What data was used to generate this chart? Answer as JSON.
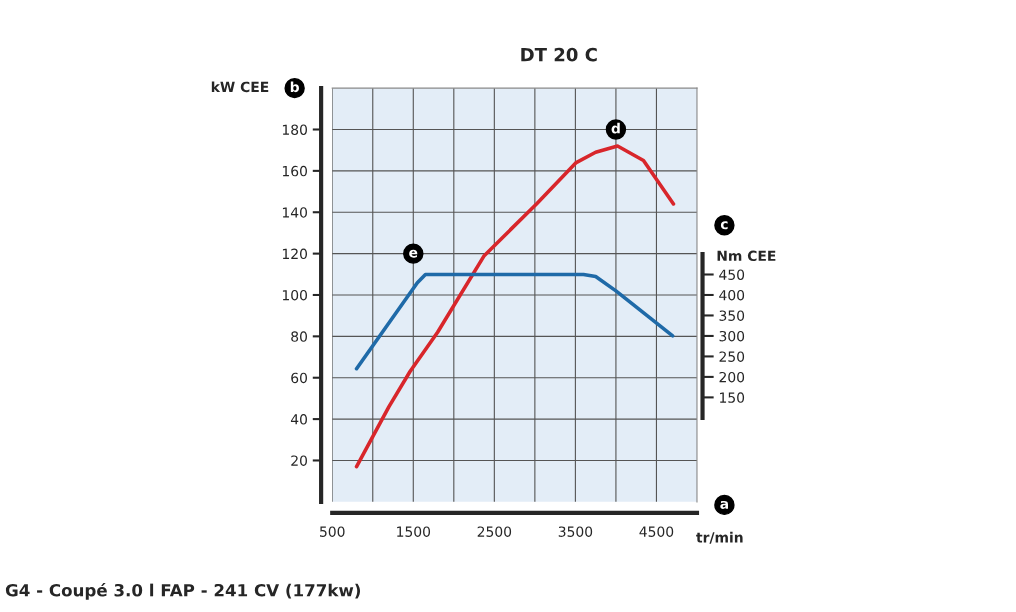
{
  "chart_data": {
    "type": "line",
    "title": "DT 20 C",
    "xlabel": "tr/min",
    "ylabel": "kW CEE",
    "y2label": "Nm CEE",
    "series": [
      {
        "color": "#d8262b",
        "x": [
          800,
          1200,
          1460,
          1800,
          2375,
          3020,
          3510,
          3750,
          4020,
          4340,
          4710
        ],
        "values": [
          17,
          46,
          63,
          82,
          119,
          144,
          164,
          169,
          172,
          165,
          144
        ]
      },
      {
        "color": "#1f6aa8",
        "axis": "y2",
        "x": [
          800,
          1550,
          1650,
          3600,
          3750,
          4000,
          4700
        ],
        "values": [
          220,
          430,
          450,
          450,
          445,
          410,
          300
        ]
      }
    ],
    "xlim": [
      500,
      5000
    ],
    "xticks": [
      500,
      {
        "value": 1000,
        "label": null
      },
      1500,
      {
        "value": 2000,
        "label": null
      },
      2500,
      {
        "value": 3000,
        "label": null
      },
      3500,
      {
        "value": 4000,
        "label": null
      },
      4500
    ],
    "ylim": [
      0,
      200
    ],
    "yticks": [
      20,
      40,
      60,
      80,
      100,
      120,
      140,
      160,
      180
    ],
    "y2lim": [
      -105,
      905
    ],
    "y2ticks": [
      150,
      200,
      250,
      300,
      350,
      400,
      450
    ],
    "grid": true,
    "line_style": "solid",
    "marker": "none",
    "annotations": [
      {
        "text": "d",
        "x": 4000,
        "y": 180
      },
      {
        "text": "e",
        "x": 1500,
        "y": 120
      },
      "a",
      "b",
      "c",
      "G4 - Coupé 3.0 l FAP - 241 CV (177kw)"
    ]
  }
}
